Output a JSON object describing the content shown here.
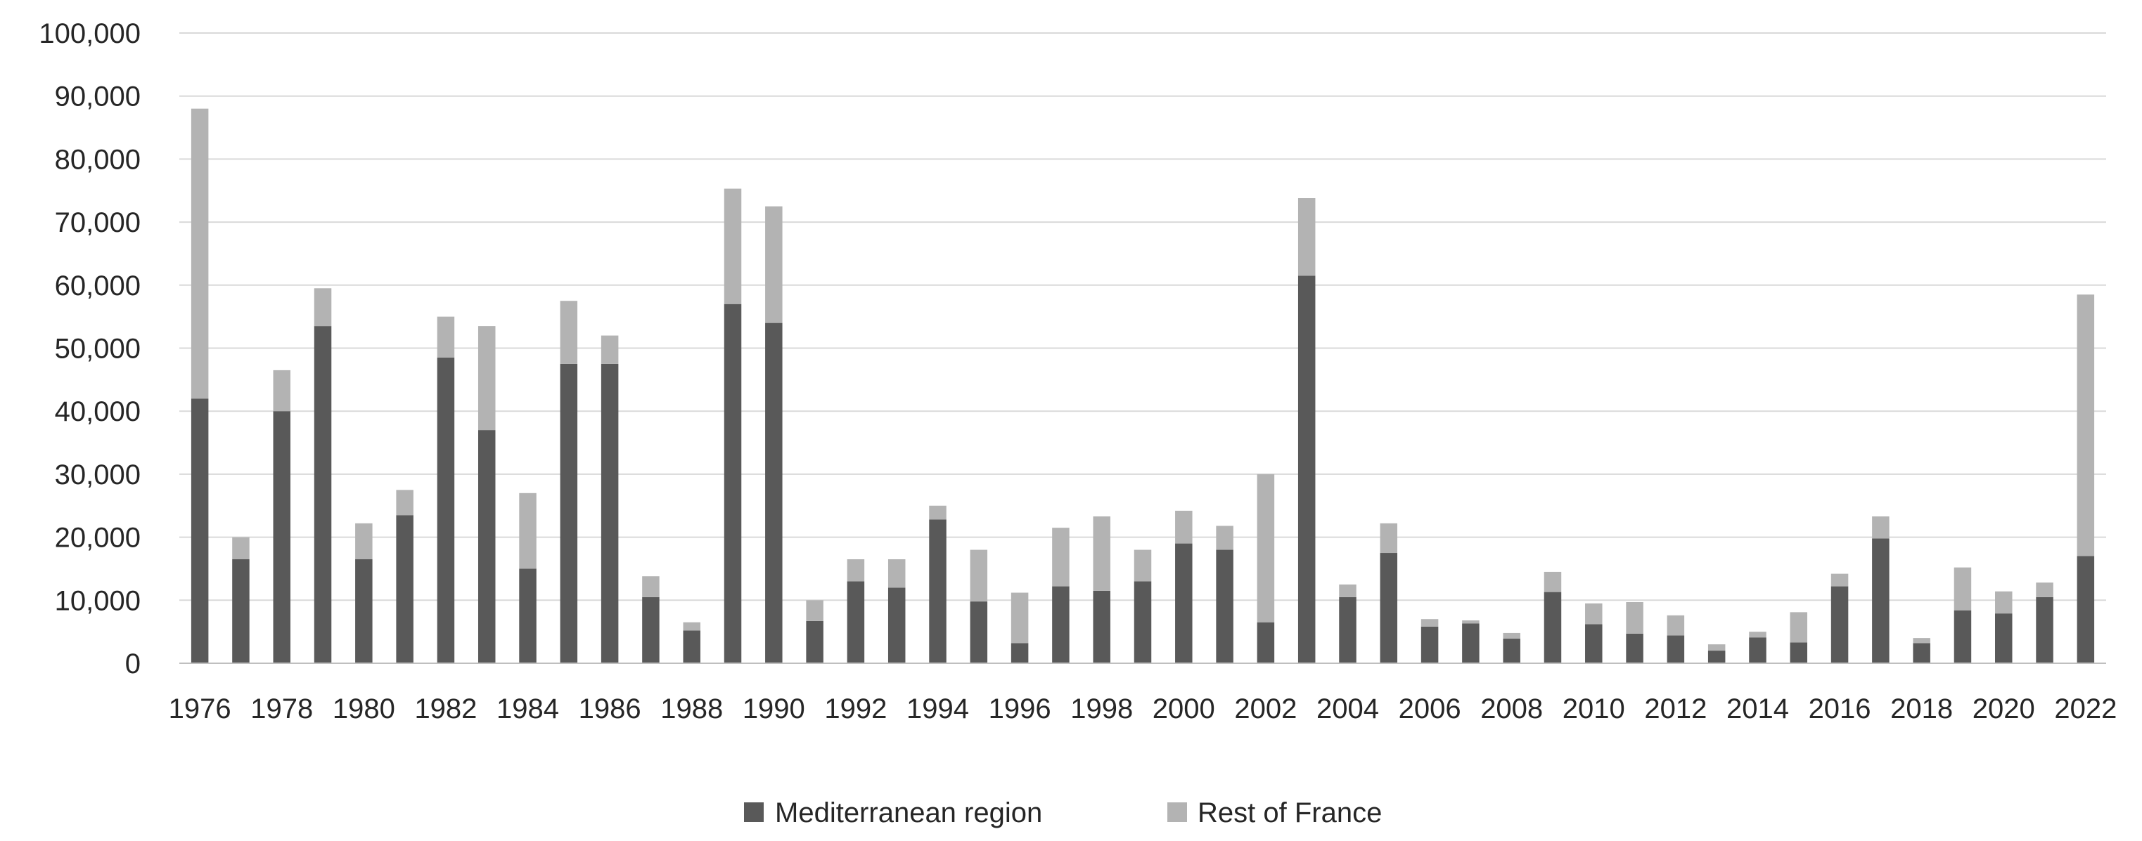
{
  "chart_data": {
    "type": "bar",
    "stacked": true,
    "title": "",
    "xlabel": "",
    "ylabel": "",
    "ylim": [
      0,
      100000
    ],
    "yticks": [
      "0",
      "10,000",
      "20,000",
      "30,000",
      "40,000",
      "50,000",
      "60,000",
      "70,000",
      "80,000",
      "90,000",
      "100,000"
    ],
    "grid": true,
    "legend_position": "bottom",
    "categories": [
      "1976",
      "1977",
      "1978",
      "1979",
      "1980",
      "1981",
      "1982",
      "1983",
      "1984",
      "1985",
      "1986",
      "1987",
      "1988",
      "1989",
      "1990",
      "1991",
      "1992",
      "1993",
      "1994",
      "1995",
      "1996",
      "1997",
      "1998",
      "1999",
      "2000",
      "2001",
      "2002",
      "2003",
      "2004",
      "2005",
      "2006",
      "2007",
      "2008",
      "2009",
      "2010",
      "2011",
      "2012",
      "2013",
      "2014",
      "2015",
      "2016",
      "2017",
      "2018",
      "2019",
      "2020",
      "2021",
      "2022"
    ],
    "x_tick_labels": [
      "1976",
      "1978",
      "1980",
      "1982",
      "1984",
      "1986",
      "1988",
      "1990",
      "1992",
      "1994",
      "1996",
      "1998",
      "2000",
      "2002",
      "2004",
      "2006",
      "2008",
      "2010",
      "2012",
      "2014",
      "2016",
      "2018",
      "2020",
      "2022"
    ],
    "series": [
      {
        "name": "Mediterranean region",
        "color": "#595959",
        "values": [
          42000,
          16500,
          40000,
          53500,
          16500,
          23500,
          48500,
          37000,
          15000,
          47500,
          47500,
          10500,
          5200,
          57000,
          54000,
          6700,
          13000,
          12000,
          22800,
          9800,
          3200,
          12200,
          11500,
          13000,
          19000,
          18000,
          6500,
          61500,
          10500,
          17500,
          5800,
          6300,
          3900,
          11300,
          6200,
          4700,
          4400,
          2000,
          4100,
          3300,
          12200,
          19800,
          3200,
          8400,
          7900,
          10500,
          17000
        ]
      },
      {
        "name": "Rest of France",
        "color": "#b3b3b3",
        "values": [
          46000,
          3500,
          6500,
          6000,
          5700,
          4000,
          6500,
          16500,
          12000,
          10000,
          4500,
          3300,
          1300,
          18300,
          18500,
          3300,
          3500,
          4500,
          2200,
          8200,
          8000,
          9300,
          11800,
          5000,
          5200,
          3800,
          23500,
          12300,
          2000,
          4700,
          1200,
          500,
          900,
          3200,
          3300,
          5000,
          3200,
          1000,
          900,
          4800,
          2000,
          3500,
          800,
          6800,
          3500,
          2300,
          41500
        ]
      }
    ]
  }
}
